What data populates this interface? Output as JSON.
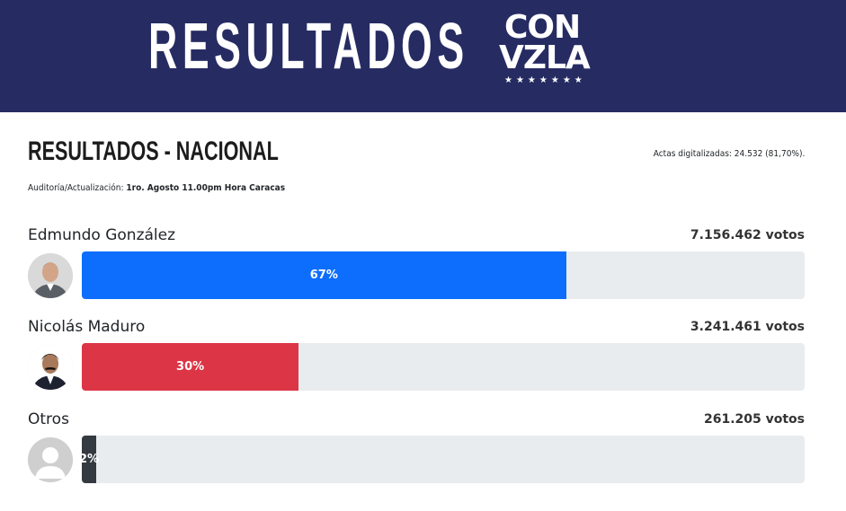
{
  "banner": {
    "title": "RESULTADOS",
    "logo_line1": "CON",
    "logo_line2": "VZLA",
    "logo_stars": "★★★★★★★"
  },
  "section": {
    "title": "RESULTADOS - NACIONAL",
    "actas": "Actas digitalizadas: 24.532 (81,70%).",
    "audit_label": "Auditoría/Actualización:",
    "audit_value": "1ro. Agosto 11.00pm Hora Caracas"
  },
  "candidates": [
    {
      "name": "Edmundo González",
      "votes": "7.156.462 votos",
      "percent_label": "67%",
      "percent": 67,
      "color": "#0d6efd"
    },
    {
      "name": "Nicolás Maduro",
      "votes": "3.241.461 votos",
      "percent_label": "30%",
      "percent": 30,
      "color": "#dc3545"
    },
    {
      "name": "Otros",
      "votes": "261.205 votos",
      "percent_label": "2%",
      "percent": 2,
      "color": "#343a40"
    }
  ]
}
